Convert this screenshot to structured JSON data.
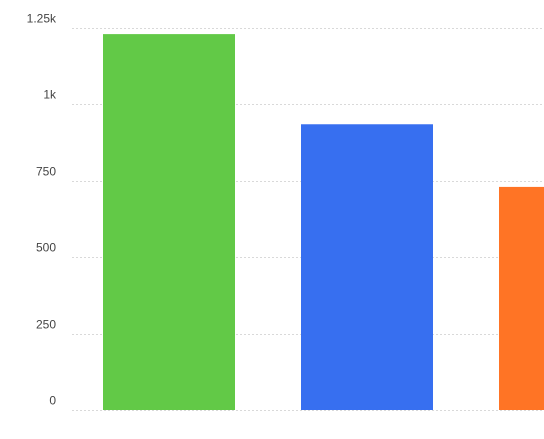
{
  "chart_data": {
    "type": "bar",
    "title": "",
    "xlabel": "",
    "ylabel": "",
    "ylim": [
      0,
      1250
    ],
    "grid": true,
    "y_ticks": [
      {
        "value": 0,
        "label": "0"
      },
      {
        "value": 250,
        "label": "250"
      },
      {
        "value": 500,
        "label": "500"
      },
      {
        "value": 750,
        "label": "750"
      },
      {
        "value": 1000,
        "label": "1k"
      },
      {
        "value": 1250,
        "label": "1.25k"
      }
    ],
    "bars": [
      {
        "value": 1230,
        "color": "#62c947"
      },
      {
        "value": 935,
        "color": "#376ff0"
      },
      {
        "value": 730,
        "color": "#ff7425"
      }
    ]
  }
}
